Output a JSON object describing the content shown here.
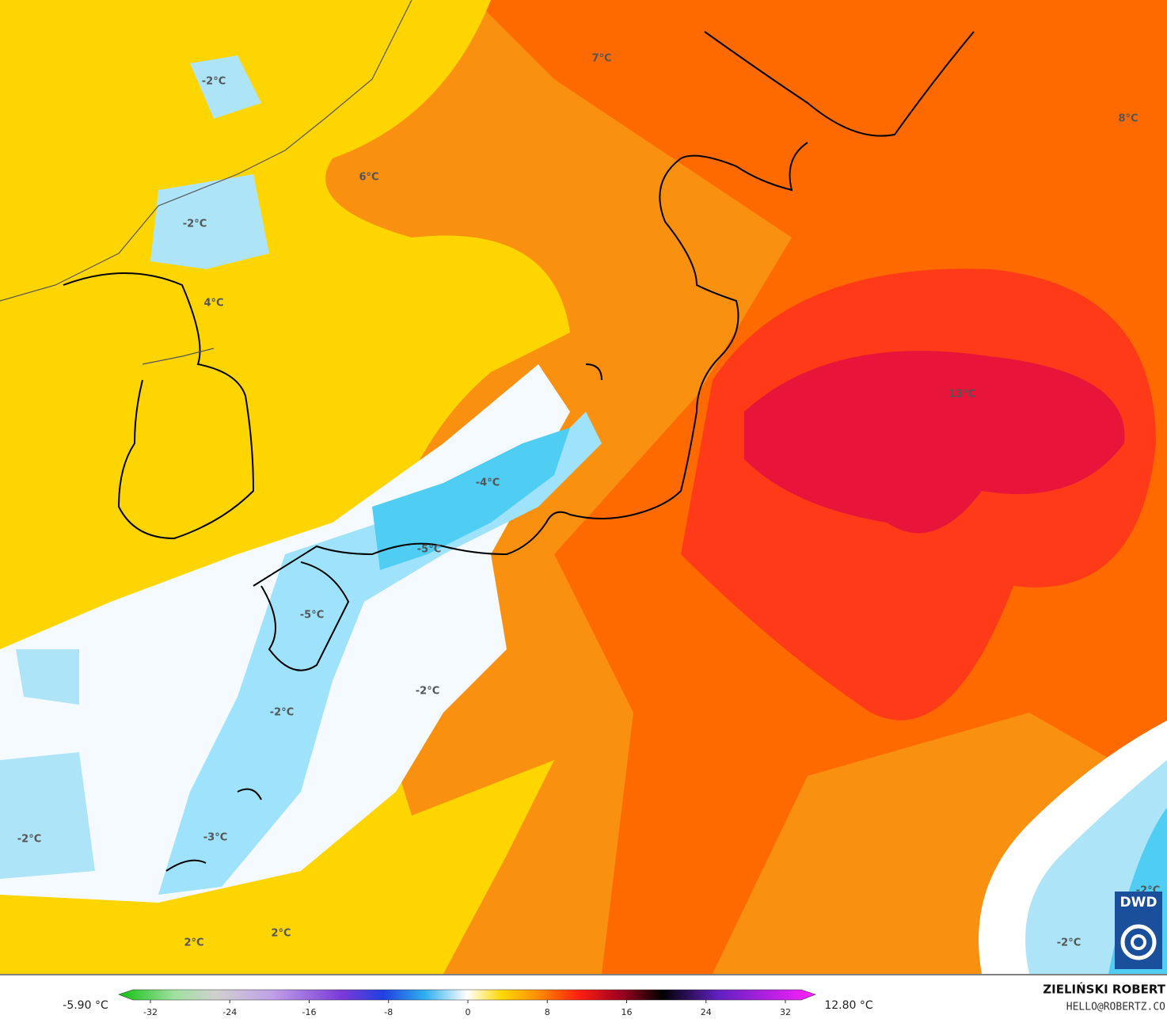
{
  "map": {
    "labels": [
      "-2°C",
      "7°C",
      "8°C",
      "6°C",
      "-2°C",
      "4°C",
      "13°C",
      "-4°C",
      "-5°C",
      "-5°C",
      "-2°C",
      "-2°C",
      "-2°C",
      "-3°C",
      "2°C",
      "2°C",
      "-2°C",
      "-2°C"
    ],
    "min_label": "-5.90 °C",
    "max_label": "12.80 °C",
    "colorbar": {
      "lim": [
        -32,
        32
      ],
      "ticks": [
        -32,
        -24,
        -16,
        -8,
        0,
        8,
        16,
        24,
        32
      ]
    },
    "author": "ZIELIŃSKI ROBERT",
    "email": "HELLO@ROBERTZ.CO",
    "logo": "DWD"
  }
}
